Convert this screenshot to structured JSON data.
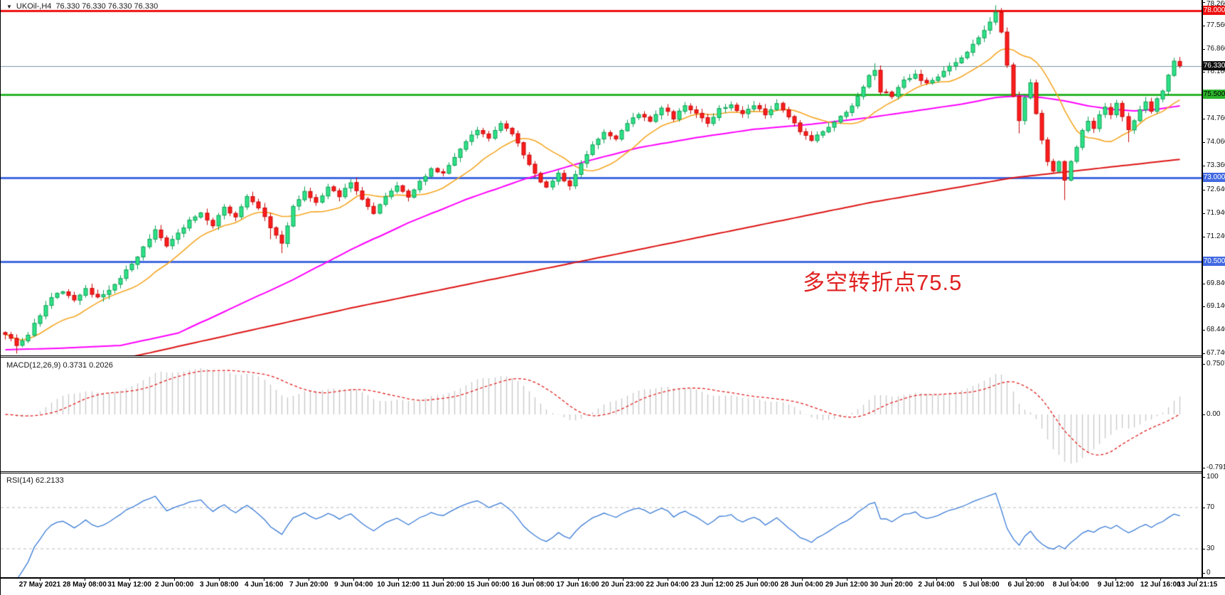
{
  "header": {
    "dropdown_icon": "▼",
    "symbol_period": "UKOil-,H4",
    "ohlc": "76.330 76.330 76.330 76.330"
  },
  "annotation": {
    "text": "多空转折点75.5",
    "color": "#e02020"
  },
  "colors": {
    "bull_fill": "#2ee287",
    "bull_stroke": "#0d9f55",
    "bear_fill": "#fb1d1d",
    "bear_stroke": "#c80808",
    "ma_fast": "#f5a623",
    "ma_mid": "#ff00ff",
    "ma_slow": "#dc1414",
    "macd_hist": "#c9c9c9",
    "macd_signal": "#e02222",
    "rsi_line": "#3a7bd5",
    "rsi_level": "#bbbbbb",
    "current_price_line": "#7d93a3",
    "axis_text": "#111111"
  },
  "price_axis": {
    "ticks": [
      {
        "label": "78.260",
        "price": 78.26
      },
      {
        "label": "77.560",
        "price": 77.56
      },
      {
        "label": "76.860",
        "price": 76.86
      },
      {
        "label": "76.160",
        "price": 76.16
      },
      {
        "label": "74.760",
        "price": 74.76
      },
      {
        "label": "74.060",
        "price": 74.06
      },
      {
        "label": "73.360",
        "price": 73.36
      },
      {
        "label": "72.640",
        "price": 72.64
      },
      {
        "label": "71.940",
        "price": 71.94
      },
      {
        "label": "71.240",
        "price": 71.24
      },
      {
        "label": "69.840",
        "price": 69.84
      },
      {
        "label": "69.140",
        "price": 69.14
      },
      {
        "label": "68.440",
        "price": 68.44
      },
      {
        "label": "67.740",
        "price": 67.74
      }
    ],
    "badges": [
      {
        "label": "78.000",
        "price": 78.0,
        "bg": "#ee1111",
        "fg": "#ffffff"
      },
      {
        "label": "76.330",
        "price": 76.33,
        "bg": "#111111",
        "fg": "#ffffff"
      },
      {
        "label": "75.500",
        "price": 75.5,
        "bg": "#2cb42c",
        "fg": "#000000"
      },
      {
        "label": "73.000",
        "price": 73.0,
        "bg": "#4169e1",
        "fg": "#ffffff"
      },
      {
        "label": "70.500",
        "price": 70.5,
        "bg": "#4169e1",
        "fg": "#ffffff"
      }
    ]
  },
  "macd_panel": {
    "label": "MACD(12,26,9) 0.3731 0.2026",
    "fast": 12,
    "slow": 26,
    "signal": 9,
    "value_main": 0.3731,
    "value_signal": 0.2026,
    "scale_labels": [
      {
        "text": "0.7507",
        "v": 0.7507
      },
      {
        "text": "0.00",
        "v": 0.0
      },
      {
        "text": "-0.7918",
        "v": -0.7918
      }
    ]
  },
  "rsi_panel": {
    "label": "RSI(14) 62.2133",
    "period": 14,
    "value": 62.2133,
    "scale_labels": [
      {
        "text": "100",
        "v": 100
      },
      {
        "text": "70",
        "v": 70
      },
      {
        "text": "30",
        "v": 30
      },
      {
        "text": "0",
        "v": 0
      }
    ],
    "levels": [
      70,
      30
    ]
  },
  "time_axis": {
    "labels": [
      "27 May 2021",
      "28 May 08:00",
      "31 May 12:00",
      "2 Jun 00:00",
      "3 Jun 08:00",
      "4 Jun 16:00",
      "7 Jun 20:00",
      "9 Jun 04:00",
      "10 Jun 12:00",
      "11 Jun 20:00",
      "15 Jun 00:00",
      "16 Jun 08:00",
      "17 Jun 16:00",
      "20 Jun 23:00",
      "22 Jun 04:00",
      "23 Jun 12:00",
      "25 Jun 00:00",
      "28 Jun 04:00",
      "29 Jun 12:00",
      "30 Jun 20:00",
      "2 Jul 04:00",
      "5 Jul 08:00",
      "6 Jul 20:00",
      "8 Jul 04:00",
      "9 Jul 12:00",
      "12 Jul 16:00",
      "13 Jul 21:15"
    ]
  },
  "chart_data": {
    "type": "candlestick",
    "symbol": "UKOil-",
    "timeframe": "H4",
    "last_price": 76.33,
    "ylim": [
      67.68,
      78.32
    ],
    "bars": 205,
    "hlines": [
      {
        "price": 78.0,
        "label": "78.000",
        "color": "#ee1111",
        "width": 3
      },
      {
        "price": 75.5,
        "label": "75.500",
        "color": "#2cb42c",
        "width": 3
      },
      {
        "price": 73.0,
        "label": "73.000",
        "color": "#4169e1",
        "width": 3
      },
      {
        "price": 70.5,
        "label": "70.500",
        "color": "#4169e1",
        "width": 3
      }
    ],
    "price_anchors": [
      [
        0,
        68.35
      ],
      [
        2,
        68.0
      ],
      [
        4,
        68.3
      ],
      [
        6,
        68.9
      ],
      [
        8,
        69.4
      ],
      [
        10,
        69.6
      ],
      [
        12,
        69.3
      ],
      [
        14,
        69.7
      ],
      [
        16,
        69.4
      ],
      [
        18,
        69.6
      ],
      [
        20,
        70.0
      ],
      [
        22,
        70.4
      ],
      [
        24,
        70.9
      ],
      [
        26,
        71.4
      ],
      [
        28,
        70.95
      ],
      [
        30,
        71.3
      ],
      [
        32,
        71.7
      ],
      [
        34,
        71.95
      ],
      [
        36,
        71.6
      ],
      [
        38,
        72.1
      ],
      [
        40,
        71.8
      ],
      [
        42,
        72.4
      ],
      [
        44,
        72.1
      ],
      [
        46,
        71.5
      ],
      [
        48,
        71.05
      ],
      [
        50,
        72.1
      ],
      [
        52,
        72.55
      ],
      [
        54,
        72.25
      ],
      [
        56,
        72.7
      ],
      [
        58,
        72.45
      ],
      [
        60,
        72.85
      ],
      [
        62,
        72.4
      ],
      [
        64,
        71.95
      ],
      [
        66,
        72.45
      ],
      [
        68,
        72.75
      ],
      [
        70,
        72.4
      ],
      [
        72,
        72.85
      ],
      [
        74,
        73.3
      ],
      [
        76,
        73.1
      ],
      [
        78,
        73.6
      ],
      [
        80,
        74.1
      ],
      [
        82,
        74.4
      ],
      [
        84,
        74.2
      ],
      [
        86,
        74.6
      ],
      [
        88,
        74.3
      ],
      [
        90,
        73.7
      ],
      [
        92,
        73.1
      ],
      [
        94,
        72.7
      ],
      [
        96,
        73.1
      ],
      [
        98,
        72.75
      ],
      [
        100,
        73.4
      ],
      [
        102,
        73.95
      ],
      [
        104,
        74.4
      ],
      [
        106,
        74.15
      ],
      [
        108,
        74.6
      ],
      [
        110,
        74.9
      ],
      [
        112,
        74.7
      ],
      [
        114,
        75.1
      ],
      [
        116,
        74.8
      ],
      [
        118,
        75.2
      ],
      [
        120,
        74.9
      ],
      [
        122,
        74.6
      ],
      [
        124,
        75.05
      ],
      [
        126,
        75.2
      ],
      [
        128,
        74.9
      ],
      [
        130,
        75.15
      ],
      [
        132,
        74.9
      ],
      [
        134,
        75.2
      ],
      [
        136,
        74.8
      ],
      [
        138,
        74.4
      ],
      [
        140,
        74.15
      ],
      [
        142,
        74.35
      ],
      [
        144,
        74.65
      ],
      [
        146,
        74.95
      ],
      [
        148,
        75.4
      ],
      [
        150,
        76.05
      ],
      [
        151,
        76.25
      ],
      [
        152,
        75.6
      ],
      [
        154,
        75.45
      ],
      [
        156,
        75.9
      ],
      [
        158,
        76.1
      ],
      [
        160,
        75.8
      ],
      [
        162,
        76.05
      ],
      [
        164,
        76.3
      ],
      [
        166,
        76.6
      ],
      [
        168,
        77.0
      ],
      [
        170,
        77.4
      ],
      [
        171,
        77.7
      ],
      [
        172,
        78.0
      ],
      [
        173,
        77.4
      ],
      [
        174,
        76.4
      ],
      [
        175,
        75.4
      ],
      [
        176,
        74.75
      ],
      [
        177,
        75.4
      ],
      [
        178,
        75.85
      ],
      [
        179,
        74.95
      ],
      [
        180,
        74.15
      ],
      [
        181,
        73.45
      ],
      [
        182,
        73.2
      ],
      [
        183,
        73.45
      ],
      [
        184,
        72.95
      ],
      [
        185,
        73.5
      ],
      [
        186,
        73.95
      ],
      [
        187,
        74.4
      ],
      [
        188,
        74.7
      ],
      [
        189,
        74.45
      ],
      [
        190,
        74.85
      ],
      [
        191,
        75.1
      ],
      [
        192,
        74.9
      ],
      [
        193,
        75.2
      ],
      [
        194,
        74.85
      ],
      [
        195,
        74.4
      ],
      [
        196,
        74.7
      ],
      [
        197,
        75.05
      ],
      [
        198,
        75.25
      ],
      [
        199,
        75.0
      ],
      [
        200,
        75.35
      ],
      [
        201,
        75.6
      ],
      [
        202,
        76.05
      ],
      [
        203,
        76.45
      ],
      [
        204,
        76.33
      ]
    ],
    "wick_events": [
      {
        "bar": 2,
        "low": 0.18
      },
      {
        "bar": 46,
        "low": 0.2
      },
      {
        "bar": 48,
        "low": 0.22
      },
      {
        "bar": 151,
        "high": 0.1
      },
      {
        "bar": 172,
        "high": 0.15
      },
      {
        "bar": 176,
        "low": 0.25
      },
      {
        "bar": 184,
        "low": 0.5
      },
      {
        "bar": 195,
        "low": 0.3
      }
    ],
    "ma_fast_period": 13,
    "ma_mid_anchors": [
      [
        0,
        67.85
      ],
      [
        10,
        67.9
      ],
      [
        20,
        67.98
      ],
      [
        30,
        68.35
      ],
      [
        40,
        69.15
      ],
      [
        50,
        69.95
      ],
      [
        60,
        70.85
      ],
      [
        70,
        71.65
      ],
      [
        80,
        72.35
      ],
      [
        90,
        72.95
      ],
      [
        100,
        73.45
      ],
      [
        110,
        73.9
      ],
      [
        120,
        74.2
      ],
      [
        130,
        74.45
      ],
      [
        140,
        74.6
      ],
      [
        150,
        74.8
      ],
      [
        158,
        75.0
      ],
      [
        166,
        75.2
      ],
      [
        172,
        75.4
      ],
      [
        176,
        75.45
      ],
      [
        180,
        75.4
      ],
      [
        184,
        75.3
      ],
      [
        188,
        75.15
      ],
      [
        192,
        75.05
      ],
      [
        196,
        75.0
      ],
      [
        200,
        75.05
      ],
      [
        204,
        75.15
      ]
    ],
    "ma_slow_anchors": [
      [
        0,
        66.8
      ],
      [
        30,
        67.95
      ],
      [
        60,
        69.1
      ],
      [
        90,
        70.15
      ],
      [
        120,
        71.2
      ],
      [
        150,
        72.25
      ],
      [
        175,
        73.0
      ],
      [
        204,
        73.55
      ]
    ]
  }
}
